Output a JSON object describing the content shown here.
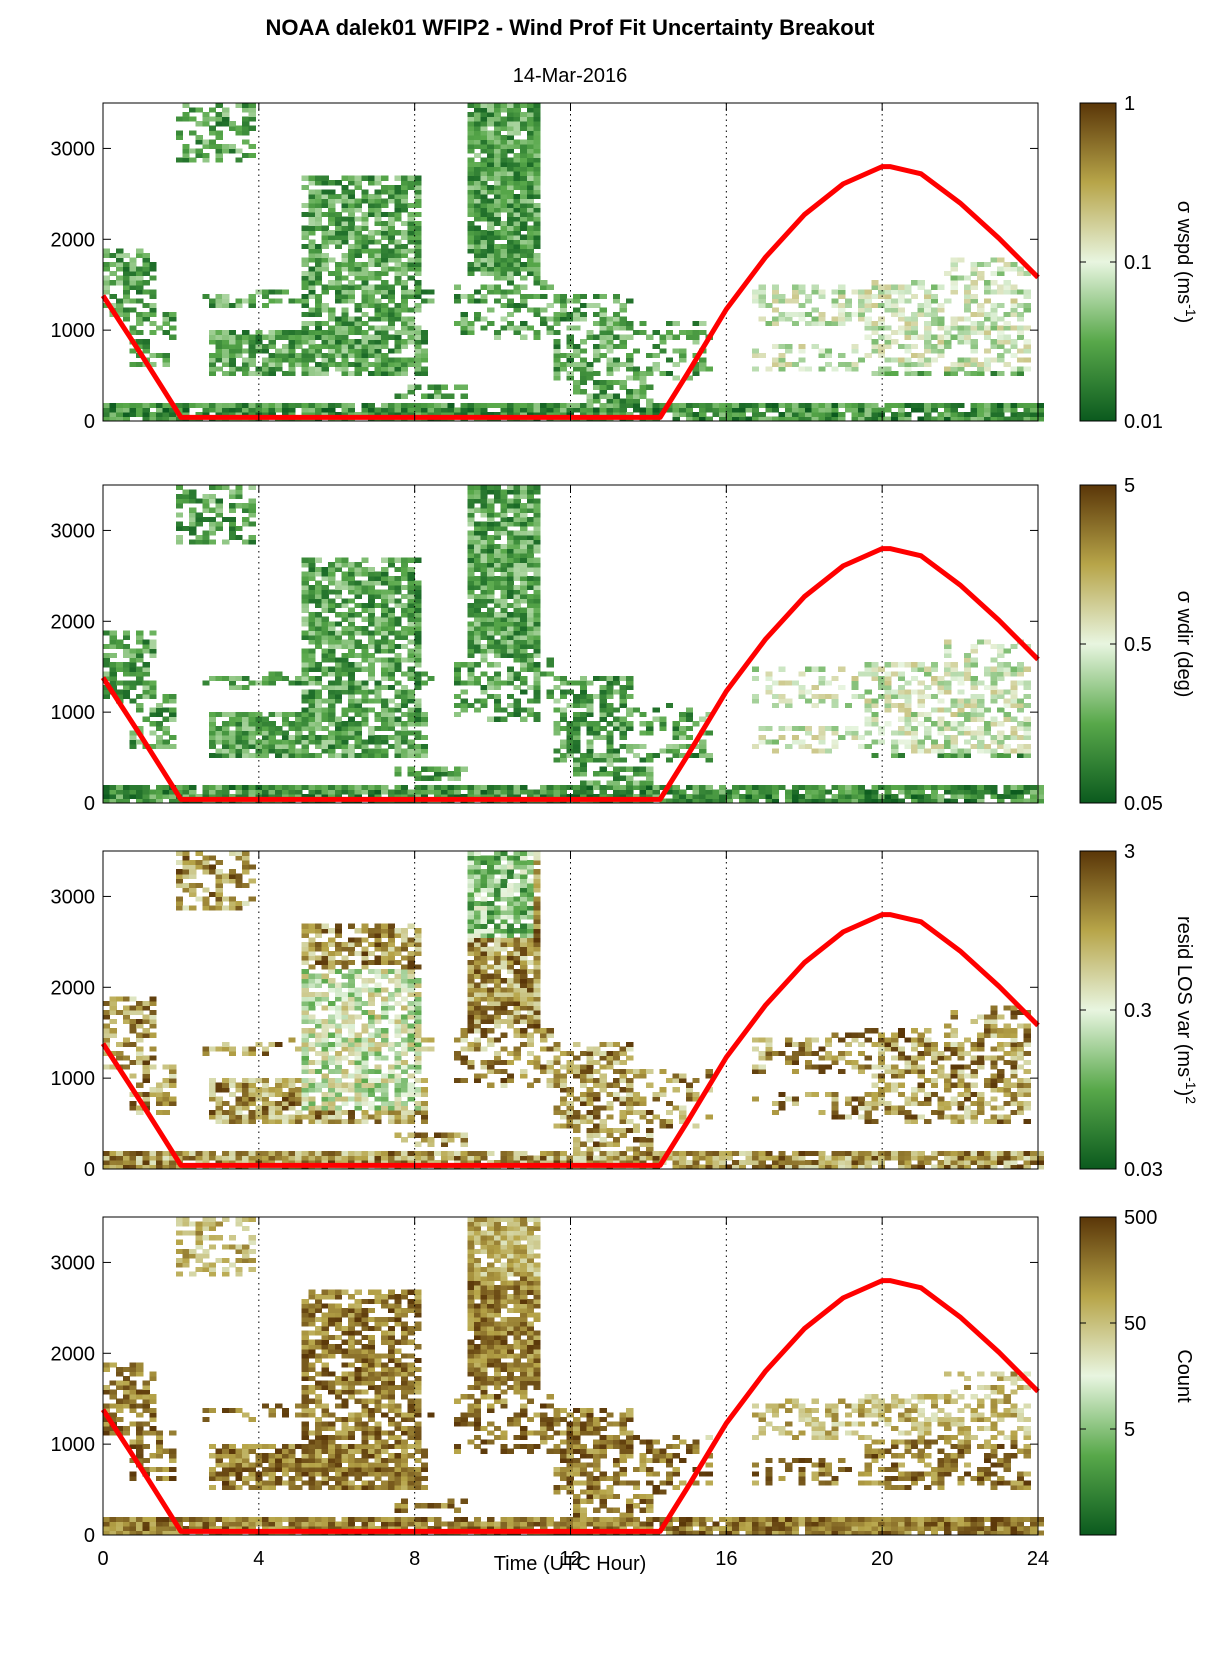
{
  "figure": {
    "title": "NOAA dalek01 WFIP2 - Wind Prof Fit Uncertainty Breakout",
    "subtitle": "14-Mar-2016",
    "xlabel": "Time (UTC Hour)"
  },
  "chart_data": [
    {
      "type": "heatmap",
      "xlim": [
        0,
        24
      ],
      "ylim": [
        0,
        3500
      ],
      "xticks": [
        0,
        4,
        8,
        12,
        16,
        20,
        24
      ],
      "yticks": [
        0,
        1000,
        2000,
        3000
      ],
      "colorbar": {
        "label": "σ wspd (ms",
        "label_sup": "-1",
        "label_suffix": ")",
        "scale": "log",
        "ticks": [
          {
            "value": 0.01,
            "label": "0.01"
          },
          {
            "value": 0.1,
            "label": "0.1"
          },
          {
            "value": 1,
            "label": "1"
          }
        ],
        "range": [
          0.01,
          1
        ],
        "colors": [
          "#0b5a1e",
          "#58a84a",
          "#e8f5e0",
          "#b7a549",
          "#5a3608"
        ]
      },
      "fill": "green",
      "grid": "vertical dotted at 4,8,12,16,20"
    },
    {
      "type": "heatmap",
      "xlim": [
        0,
        24
      ],
      "ylim": [
        0,
        3500
      ],
      "xticks": [
        0,
        4,
        8,
        12,
        16,
        20,
        24
      ],
      "yticks": [
        0,
        1000,
        2000,
        3000
      ],
      "colorbar": {
        "label": "σ wdir (deg)",
        "label_sup": "",
        "label_suffix": "",
        "scale": "log",
        "ticks": [
          {
            "value": 0.05,
            "label": "0.05"
          },
          {
            "value": 0.5,
            "label": "0.5"
          },
          {
            "value": 5,
            "label": "5"
          }
        ],
        "range": [
          0.05,
          5
        ],
        "colors": [
          "#0b5a1e",
          "#58a84a",
          "#e8f5e0",
          "#b7a549",
          "#5a3608"
        ]
      },
      "fill": "green",
      "grid": "vertical dotted at 4,8,12,16,20"
    },
    {
      "type": "heatmap",
      "xlim": [
        0,
        24
      ],
      "ylim": [
        0,
        3500
      ],
      "xticks": [
        0,
        4,
        8,
        12,
        16,
        20,
        24
      ],
      "yticks": [
        0,
        1000,
        2000,
        3000
      ],
      "colorbar": {
        "label": "resid LOS var (ms",
        "label_sup": "-1",
        "label_suffix": ")",
        "label_sup2": "2",
        "scale": "log",
        "ticks": [
          {
            "value": 0.03,
            "label": "0.03"
          },
          {
            "value": 0.3,
            "label": "0.3"
          },
          {
            "value": 3,
            "label": "3"
          }
        ],
        "range": [
          0.03,
          3
        ],
        "colors": [
          "#0b5a1e",
          "#58a84a",
          "#e8f5e0",
          "#b7a549",
          "#5a3608"
        ]
      },
      "fill": "brown",
      "grid": "vertical dotted at 4,8,12,16,20"
    },
    {
      "type": "heatmap",
      "xlim": [
        0,
        24
      ],
      "ylim": [
        0,
        3500
      ],
      "xticks": [
        0,
        4,
        8,
        12,
        16,
        20,
        24
      ],
      "yticks": [
        0,
        1000,
        2000,
        3000
      ],
      "colorbar": {
        "label": "Count",
        "label_sup": "",
        "label_suffix": "",
        "scale": "log",
        "ticks": [
          {
            "value": 5,
            "label": "5"
          },
          {
            "value": 50,
            "label": "50"
          },
          {
            "value": 500,
            "label": "500"
          }
        ],
        "range": [
          0.5,
          500
        ],
        "colors": [
          "#0b5a1e",
          "#58a84a",
          "#e8f5e0",
          "#b7a549",
          "#5a3608"
        ]
      },
      "fill": "count",
      "grid": "vertical dotted at 4,8,12,16,20"
    }
  ],
  "overlay": {
    "color": "#ff0000",
    "x": [
      0,
      0.5,
      1,
      1.5,
      2.0,
      4,
      6,
      8,
      10,
      12,
      14.3,
      15,
      16,
      17,
      18,
      19,
      20,
      20.2,
      21,
      22,
      23,
      24
    ],
    "y": [
      1380,
      1050,
      720,
      380,
      40,
      40,
      40,
      40,
      40,
      40,
      40,
      520,
      1230,
      1800,
      2270,
      2610,
      2800,
      2800,
      2720,
      2400,
      2010,
      1580
    ]
  }
}
